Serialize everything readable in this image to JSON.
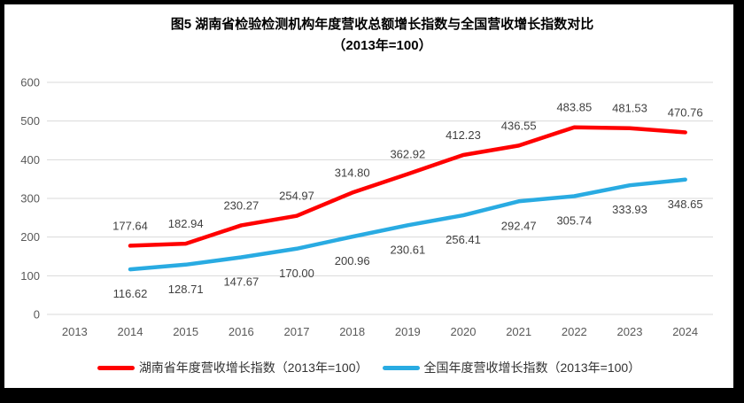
{
  "title": {
    "line1": "图5 湖南省检验检测机构年度营收总额增长指数与全国营收增长指数对比",
    "line2": "（2013年=100）"
  },
  "chart_data": {
    "type": "line",
    "categories": [
      "2013",
      "2014",
      "2015",
      "2016",
      "2017",
      "2018",
      "2019",
      "2020",
      "2021",
      "2022",
      "2023",
      "2024"
    ],
    "series": [
      {
        "name": "湖南省年度营收增长指数（2013年=100）",
        "color": "#FF0000",
        "label_position": "above",
        "values": [
          null,
          177.64,
          182.94,
          230.27,
          254.97,
          314.8,
          362.92,
          412.23,
          436.55,
          483.85,
          481.53,
          470.76
        ]
      },
      {
        "name": "全国年度营收增长指数（2013年=100）",
        "color": "#29ABE2",
        "label_position": "below",
        "values": [
          null,
          116.62,
          128.71,
          147.67,
          170.0,
          200.96,
          230.61,
          256.41,
          292.47,
          305.74,
          333.93,
          348.65
        ]
      }
    ],
    "title": "图5 湖南省检验检测机构年度营收总额增长指数与全国营收增长指数对比（2013年=100）",
    "xlabel": "",
    "ylabel": "",
    "ylim": [
      0,
      600
    ],
    "ytick_interval": 100,
    "grid": "horizontal",
    "legend_position": "bottom",
    "gridline_color": "#D9D9D9",
    "axis_text_color": "#595959",
    "data_label_color": "#404040",
    "data_label_decimals": 2
  },
  "legend": {
    "items": [
      {
        "label": "湖南省年度营收增长指数（2013年=100）",
        "color": "#FF0000"
      },
      {
        "label": "全国年度营收增长指数（2013年=100）",
        "color": "#29ABE2"
      }
    ]
  }
}
